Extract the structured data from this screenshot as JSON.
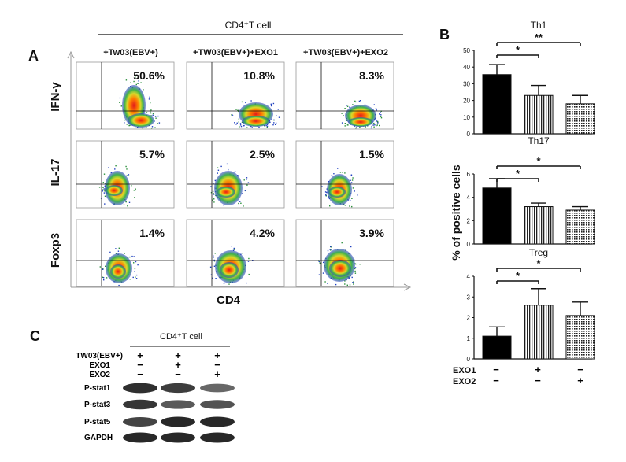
{
  "panel_a": {
    "letter": "A",
    "header": "CD4⁺T cell",
    "columns": [
      "+Tw03(EBV+)",
      "+TW03(EBV+)+EXO1",
      "+TW03(EBV+)+EXO2"
    ],
    "rows": [
      {
        "label": "IFN-γ",
        "percents": [
          "50.6%",
          "10.8%",
          "8.3%"
        ]
      },
      {
        "label": "IL-17",
        "percents": [
          "5.7%",
          "2.5%",
          "1.5%"
        ]
      },
      {
        "label": "Foxp3",
        "percents": [
          "1.4%",
          "4.2%",
          "3.9%"
        ]
      }
    ],
    "x_axis_label": "CD4"
  },
  "panel_b": {
    "letter": "B",
    "y_axis_label": "% of positive cells",
    "treatment_rows": [
      {
        "label": "EXO1",
        "signs": [
          "−",
          "+",
          "−"
        ]
      },
      {
        "label": "EXO2",
        "signs": [
          "−",
          "−",
          "+"
        ]
      }
    ]
  },
  "chart_data": [
    {
      "type": "bar",
      "title": "Th1",
      "categories": [
        "1",
        "2",
        "3"
      ],
      "values": [
        35.5,
        23,
        18
      ],
      "errors": [
        6,
        6,
        5
      ],
      "ylim": [
        0,
        50
      ],
      "yticks": [
        "0",
        "10",
        "20",
        "30",
        "40",
        "50"
      ],
      "significance": [
        {
          "from": 0,
          "to": 1,
          "label": "*"
        },
        {
          "from": 0,
          "to": 2,
          "label": "**"
        }
      ]
    },
    {
      "type": "bar",
      "title": "Th17",
      "categories": [
        "1",
        "2",
        "3"
      ],
      "values": [
        4.8,
        3.2,
        2.9
      ],
      "errors": [
        0.8,
        0.3,
        0.3
      ],
      "ylim": [
        0,
        6
      ],
      "yticks": [
        "0",
        "2",
        "4",
        "6"
      ],
      "significance": [
        {
          "from": 0,
          "to": 1,
          "label": "*"
        },
        {
          "from": 0,
          "to": 2,
          "label": "*"
        }
      ]
    },
    {
      "type": "bar",
      "title": "Treg",
      "categories": [
        "1",
        "2",
        "3"
      ],
      "values": [
        1.1,
        2.6,
        2.1
      ],
      "errors": [
        0.45,
        0.8,
        0.65
      ],
      "ylim": [
        0,
        4
      ],
      "yticks": [
        "0",
        "1",
        "2",
        "3",
        "4"
      ],
      "significance": [
        {
          "from": 0,
          "to": 1,
          "label": "*"
        },
        {
          "from": 0,
          "to": 2,
          "label": "*"
        }
      ]
    }
  ],
  "panel_c": {
    "letter": "C",
    "header": "CD4⁺T cell",
    "treatments": [
      {
        "label": "TW03(EBV+)",
        "signs": [
          "+",
          "+",
          "+"
        ]
      },
      {
        "label": "EXO1",
        "signs": [
          "−",
          "+",
          "−"
        ]
      },
      {
        "label": "EXO2",
        "signs": [
          "−",
          "−",
          "+"
        ]
      }
    ],
    "blots": [
      {
        "label": "P-stat1",
        "intensity": [
          0.95,
          0.85,
          0.55
        ]
      },
      {
        "label": "P-stat3",
        "intensity": [
          0.9,
          0.65,
          0.7
        ]
      },
      {
        "label": "P-stat5",
        "intensity": [
          0.8,
          1.0,
          1.0
        ]
      },
      {
        "label": "GAPDH",
        "intensity": [
          1.0,
          1.0,
          1.0
        ]
      }
    ]
  }
}
